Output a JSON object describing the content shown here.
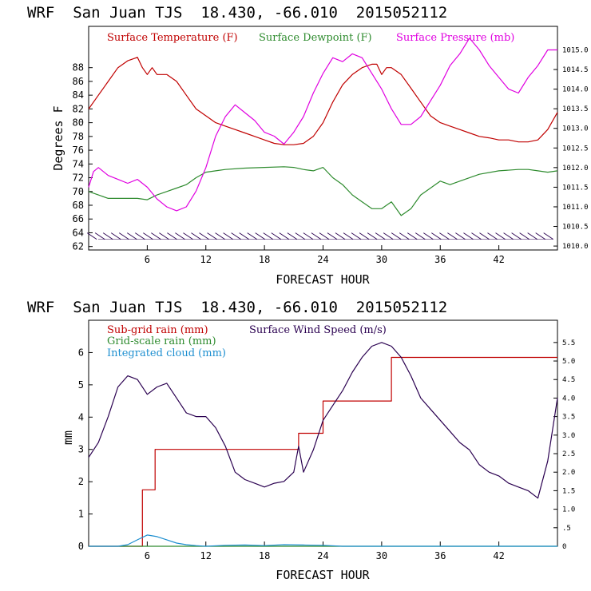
{
  "colors": {
    "temperature": "#c00000",
    "dewpoint": "#2e8b2e",
    "pressure": "#e000e0",
    "wind_barbs": "#2a0050",
    "subgrid_rain": "#c00000",
    "gridscale_rain": "#2e8b2e",
    "cloud": "#1e8fd0",
    "wind_speed": "#2a0050"
  },
  "chart_data": [
    {
      "type": "line",
      "title": "WRF  San Juan TJS  18.430, -66.010  2015052112",
      "xlabel": "FORECAST HOUR",
      "ylabel": "Degrees F",
      "xlim": [
        0,
        48
      ],
      "ylim": [
        61.5,
        94
      ],
      "x_ticks": [
        "6",
        "12",
        "18",
        "24",
        "30",
        "36",
        "42"
      ],
      "y_ticks": [
        "62",
        "64",
        "66",
        "68",
        "70",
        "72",
        "74",
        "76",
        "78",
        "80",
        "82",
        "84",
        "86",
        "88"
      ],
      "y2lim": [
        1009.9,
        1015.6
      ],
      "y2_ticks": [
        "1010.0",
        "1010.5",
        "1011.0",
        "1011.5",
        "1012.0",
        "1012.5",
        "1013.0",
        "1013.5",
        "1014.0",
        "1014.5",
        "1015.0"
      ],
      "wind_barbs": "row of wind barbs along y = 63.5",
      "series": [
        {
          "name": "Surface Temperature (F)",
          "axis": "left",
          "x": [
            0,
            1,
            2,
            3,
            4,
            5,
            5.5,
            6,
            6.5,
            7,
            8,
            9,
            10,
            11,
            12,
            13,
            14,
            15,
            16,
            17,
            18,
            19,
            20,
            21,
            22,
            23,
            24,
            25,
            26,
            27,
            28,
            29,
            29.5,
            30,
            30.5,
            31,
            32,
            33,
            34,
            35,
            36,
            37,
            38,
            39,
            40,
            41,
            42,
            43,
            44,
            45,
            46,
            47,
            48
          ],
          "y": [
            82,
            84,
            86,
            88,
            89,
            89.5,
            88,
            87,
            88,
            87,
            87,
            86,
            84,
            82,
            81,
            80,
            79.5,
            79,
            78.5,
            78,
            77.5,
            77,
            76.8,
            76.8,
            77,
            78,
            80,
            83,
            85.5,
            87,
            88,
            88.5,
            88.5,
            87,
            88,
            88,
            87,
            85,
            83,
            81,
            80,
            79.5,
            79,
            78.5,
            78,
            77.8,
            77.5,
            77.5,
            77.2,
            77.2,
            77.5,
            79,
            81.5
          ]
        },
        {
          "name": "Surface Dewpoint (F)",
          "axis": "left",
          "x": [
            0,
            1,
            2,
            4,
            5,
            6,
            7,
            8,
            9,
            10,
            11,
            12,
            13,
            14,
            16,
            18,
            20,
            21,
            22,
            23,
            24,
            25,
            26,
            27,
            28,
            29,
            30,
            31,
            32,
            33,
            34,
            35,
            36,
            37,
            38,
            40,
            42,
            44,
            45,
            46,
            47,
            48
          ],
          "y": [
            70,
            69.5,
            69,
            69,
            69,
            68.8,
            69.5,
            70,
            70.5,
            71,
            72,
            72.8,
            73,
            73.2,
            73.4,
            73.5,
            73.6,
            73.5,
            73.2,
            73,
            73.5,
            72,
            71,
            69.5,
            68.5,
            67.5,
            67.5,
            68.5,
            66.5,
            67.5,
            69.5,
            70.5,
            71.5,
            71,
            71.5,
            72.5,
            73,
            73.2,
            73.2,
            73,
            72.8,
            73
          ]
        },
        {
          "name": "Surface Pressure (mb)",
          "axis": "right",
          "x": [
            0,
            0.5,
            1,
            2,
            3,
            4,
            5,
            6,
            7,
            8,
            9,
            10,
            11,
            12,
            13,
            14,
            15,
            16,
            17,
            18,
            19,
            20,
            21,
            22,
            23,
            24,
            25,
            26,
            27,
            28,
            29,
            30,
            31,
            32,
            33,
            34,
            35,
            36,
            37,
            38,
            39,
            40,
            41,
            42,
            43,
            44,
            45,
            46,
            47,
            48
          ],
          "y": [
            1011.5,
            1011.9,
            1012.0,
            1011.8,
            1011.7,
            1011.6,
            1011.7,
            1011.5,
            1011.2,
            1011.0,
            1010.9,
            1011.0,
            1011.4,
            1012.0,
            1012.8,
            1013.3,
            1013.6,
            1013.4,
            1013.2,
            1012.9,
            1012.8,
            1012.6,
            1012.9,
            1013.3,
            1013.9,
            1014.4,
            1014.8,
            1014.7,
            1014.9,
            1014.8,
            1014.4,
            1014.0,
            1013.5,
            1013.1,
            1013.1,
            1013.3,
            1013.7,
            1014.1,
            1014.6,
            1014.9,
            1015.3,
            1015.0,
            1014.6,
            1014.3,
            1014.0,
            1013.9,
            1014.3,
            1014.6,
            1015.0,
            1015.0
          ]
        }
      ]
    },
    {
      "type": "line",
      "title": "WRF  San Juan TJS  18.430, -66.010  2015052112",
      "xlabel": "FORECAST HOUR",
      "ylabel": "mm",
      "xlim": [
        0,
        48
      ],
      "ylim": [
        0,
        7.0
      ],
      "x_ticks": [
        "6",
        "12",
        "18",
        "24",
        "30",
        "36",
        "42"
      ],
      "y_ticks": [
        "0",
        "1",
        "2",
        "3",
        "4",
        "5",
        "6"
      ],
      "y2lim": [
        0,
        6.1
      ],
      "y2_ticks": [
        "0",
        ".5",
        "1.0",
        "1.5",
        "2.0",
        "2.5",
        "3.0",
        "3.5",
        "4.0",
        "4.5",
        "5.0",
        "5.5"
      ],
      "series": [
        {
          "name": "Sub-grid rain (mm)",
          "axis": "left",
          "step": true,
          "x": [
            0,
            4,
            5.5,
            6,
            6.8,
            21,
            21.5,
            23.5,
            24,
            30.5,
            31,
            48
          ],
          "y": [
            0,
            0,
            1.75,
            1.75,
            3.0,
            3.0,
            3.5,
            3.5,
            4.5,
            4.5,
            5.85,
            5.85
          ]
        },
        {
          "name": "Grid-scale rain (mm)",
          "axis": "left",
          "x": [
            0,
            48
          ],
          "y": [
            0,
            0
          ]
        },
        {
          "name": "Integrated cloud (mm)",
          "axis": "left",
          "x": [
            0,
            3,
            4,
            5,
            6,
            7,
            8,
            9,
            10,
            11,
            12,
            14,
            16,
            18,
            20,
            22,
            24,
            26,
            48
          ],
          "y": [
            0,
            0,
            0.05,
            0.2,
            0.35,
            0.3,
            0.2,
            0.1,
            0.05,
            0.02,
            0,
            0.03,
            0.04,
            0.02,
            0.05,
            0.04,
            0.03,
            0,
            0
          ]
        },
        {
          "name": "Surface Wind Speed (m/s)",
          "axis": "right",
          "x": [
            0,
            1,
            2,
            3,
            4,
            5,
            6,
            7,
            8,
            9,
            10,
            11,
            12,
            13,
            14,
            15,
            16,
            17,
            18,
            19,
            20,
            21,
            21.5,
            22,
            23,
            24,
            25,
            26,
            27,
            28,
            29,
            30,
            31,
            32,
            33,
            34,
            35,
            36,
            37,
            38,
            39,
            40,
            41,
            42,
            43,
            44,
            45,
            46,
            47,
            48
          ],
          "y": [
            2.4,
            2.8,
            3.5,
            4.3,
            4.6,
            4.5,
            4.1,
            4.3,
            4.4,
            4.0,
            3.6,
            3.5,
            3.5,
            3.2,
            2.7,
            2.0,
            1.8,
            1.7,
            1.6,
            1.7,
            1.75,
            2.0,
            2.7,
            2.0,
            2.6,
            3.4,
            3.8,
            4.2,
            4.7,
            5.1,
            5.4,
            5.5,
            5.4,
            5.1,
            4.6,
            4.0,
            3.7,
            3.4,
            3.1,
            2.8,
            2.6,
            2.2,
            2.0,
            1.9,
            1.7,
            1.6,
            1.5,
            1.3,
            2.3,
            4.0
          ]
        }
      ]
    }
  ]
}
